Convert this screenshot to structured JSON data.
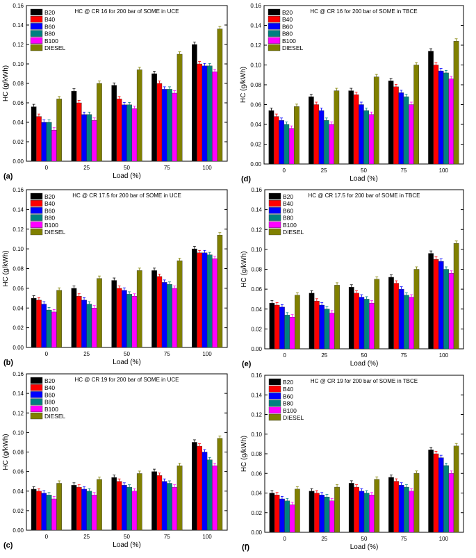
{
  "colors": {
    "B20": "#000000",
    "B40": "#ff0000",
    "B60": "#0000ff",
    "B80": "#008080",
    "B100": "#ff00ff",
    "DIESEL": "#808000"
  },
  "chart_data": [
    {
      "type": "bar",
      "panel_label": "(a)",
      "title": "HC @ CR 16 for 200 bar of SOME in UCE",
      "xlabel": "Load (%)",
      "ylabel": "HC (g/kWh)",
      "categories": [
        "0",
        "25",
        "50",
        "75",
        "100"
      ],
      "ylim": [
        0,
        0.16
      ],
      "yticks": [
        "0.00",
        "0.02",
        "0.04",
        "0.06",
        "0.08",
        "0.10",
        "0.12",
        "0.14",
        "0.16"
      ],
      "series": [
        {
          "name": "B20",
          "values": [
            0.056,
            0.072,
            0.078,
            0.09,
            0.12
          ]
        },
        {
          "name": "B40",
          "values": [
            0.046,
            0.06,
            0.064,
            0.08,
            0.1
          ]
        },
        {
          "name": "B60",
          "values": [
            0.04,
            0.048,
            0.058,
            0.074,
            0.098
          ]
        },
        {
          "name": "B80",
          "values": [
            0.04,
            0.048,
            0.058,
            0.074,
            0.098
          ]
        },
        {
          "name": "B100",
          "values": [
            0.032,
            0.042,
            0.054,
            0.07,
            0.092
          ]
        },
        {
          "name": "DIESEL",
          "values": [
            0.064,
            0.08,
            0.094,
            0.11,
            0.136
          ]
        }
      ]
    },
    {
      "type": "bar",
      "panel_label": "(d)",
      "title": "HC @ CR 16 for 200 bar of SOME in TBCE",
      "xlabel": "Load (%)",
      "ylabel": "HC (g/kWh)",
      "categories": [
        "0",
        "25",
        "50",
        "75",
        "100"
      ],
      "ylim": [
        0,
        0.16
      ],
      "yticks": [
        "0.00",
        "0.02",
        "0.04",
        "0.06",
        "0.08",
        "0.10",
        "0.12",
        "0.14",
        "0.16"
      ],
      "series": [
        {
          "name": "B20",
          "values": [
            0.054,
            0.068,
            0.074,
            0.084,
            0.114
          ]
        },
        {
          "name": "B40",
          "values": [
            0.048,
            0.06,
            0.07,
            0.078,
            0.1
          ]
        },
        {
          "name": "B60",
          "values": [
            0.044,
            0.054,
            0.06,
            0.072,
            0.094
          ]
        },
        {
          "name": "B80",
          "values": [
            0.04,
            0.044,
            0.054,
            0.068,
            0.092
          ]
        },
        {
          "name": "B100",
          "values": [
            0.036,
            0.04,
            0.05,
            0.06,
            0.086
          ]
        },
        {
          "name": "DIESEL",
          "values": [
            0.058,
            0.074,
            0.088,
            0.1,
            0.124
          ]
        }
      ]
    },
    {
      "type": "bar",
      "panel_label": "(b)",
      "title": "HC @ CR 17.5 for 200 bar of SOME in UCE",
      "xlabel": "Load (%)",
      "ylabel": "HC (g/kWh)",
      "categories": [
        "0",
        "25",
        "50",
        "75",
        "100"
      ],
      "ylim": [
        0,
        0.16
      ],
      "yticks": [
        "0.00",
        "0.02",
        "0.04",
        "0.06",
        "0.08",
        "0.10",
        "0.12",
        "0.14",
        "0.16"
      ],
      "series": [
        {
          "name": "B20",
          "values": [
            0.05,
            0.06,
            0.068,
            0.078,
            0.1
          ]
        },
        {
          "name": "B40",
          "values": [
            0.048,
            0.052,
            0.06,
            0.072,
            0.096
          ]
        },
        {
          "name": "B60",
          "values": [
            0.044,
            0.048,
            0.058,
            0.066,
            0.096
          ]
        },
        {
          "name": "B80",
          "values": [
            0.038,
            0.044,
            0.054,
            0.064,
            0.094
          ]
        },
        {
          "name": "B100",
          "values": [
            0.036,
            0.04,
            0.052,
            0.06,
            0.09
          ]
        },
        {
          "name": "DIESEL",
          "values": [
            0.058,
            0.07,
            0.078,
            0.088,
            0.114
          ]
        }
      ]
    },
    {
      "type": "bar",
      "panel_label": "(e)",
      "title": "HC @ CR 17.5 for 200 bar of SOME in TBCE",
      "xlabel": "Load (%)",
      "ylabel": "HC (g/kWh)",
      "categories": [
        "0",
        "25",
        "50",
        "75",
        "100"
      ],
      "ylim": [
        0,
        0.16
      ],
      "yticks": [
        "0.00",
        "0.02",
        "0.04",
        "0.06",
        "0.08",
        "0.10",
        "0.12",
        "0.14",
        "0.16"
      ],
      "series": [
        {
          "name": "B20",
          "values": [
            0.046,
            0.056,
            0.062,
            0.072,
            0.096
          ]
        },
        {
          "name": "B40",
          "values": [
            0.044,
            0.048,
            0.056,
            0.066,
            0.09
          ]
        },
        {
          "name": "B60",
          "values": [
            0.042,
            0.044,
            0.052,
            0.06,
            0.088
          ]
        },
        {
          "name": "B80",
          "values": [
            0.034,
            0.04,
            0.05,
            0.054,
            0.08
          ]
        },
        {
          "name": "B100",
          "values": [
            0.032,
            0.036,
            0.046,
            0.052,
            0.076
          ]
        },
        {
          "name": "DIESEL",
          "values": [
            0.054,
            0.064,
            0.07,
            0.08,
            0.106
          ]
        }
      ]
    },
    {
      "type": "bar",
      "panel_label": "(c)",
      "title": "HC @ CR 19 for 200 bar of SOME in UCE",
      "xlabel": "Load (%)",
      "ylabel": "HC (g/kWh)",
      "categories": [
        "0",
        "25",
        "50",
        "75",
        "100"
      ],
      "ylim": [
        0,
        0.16
      ],
      "yticks": [
        "0.00",
        "0.02",
        "0.04",
        "0.06",
        "0.08",
        "0.10",
        "0.12",
        "0.14",
        "0.16"
      ],
      "series": [
        {
          "name": "B20",
          "values": [
            0.042,
            0.046,
            0.054,
            0.06,
            0.09
          ]
        },
        {
          "name": "B40",
          "values": [
            0.04,
            0.044,
            0.05,
            0.056,
            0.086
          ]
        },
        {
          "name": "B60",
          "values": [
            0.038,
            0.042,
            0.046,
            0.05,
            0.08
          ]
        },
        {
          "name": "B80",
          "values": [
            0.036,
            0.04,
            0.044,
            0.048,
            0.072
          ]
        },
        {
          "name": "B100",
          "values": [
            0.032,
            0.036,
            0.04,
            0.044,
            0.066
          ]
        },
        {
          "name": "DIESEL",
          "values": [
            0.048,
            0.052,
            0.058,
            0.066,
            0.094
          ]
        }
      ]
    },
    {
      "type": "bar",
      "panel_label": "(f)",
      "title": "HC @ CR 19 for 200 bar of SOME in TBCE",
      "xlabel": "Load (%)",
      "ylabel": "HC (g/kWh)",
      "categories": [
        "0",
        "25",
        "50",
        "75",
        "100"
      ],
      "ylim": [
        0,
        0.16
      ],
      "yticks": [
        "0.00",
        "0.02",
        "0.04",
        "0.06",
        "0.08",
        "0.10",
        "0.12",
        "0.14",
        "0.16"
      ],
      "series": [
        {
          "name": "B20",
          "values": [
            0.04,
            0.042,
            0.05,
            0.056,
            0.084
          ]
        },
        {
          "name": "B40",
          "values": [
            0.038,
            0.04,
            0.046,
            0.052,
            0.08
          ]
        },
        {
          "name": "B60",
          "values": [
            0.034,
            0.038,
            0.042,
            0.048,
            0.076
          ]
        },
        {
          "name": "B80",
          "values": [
            0.032,
            0.036,
            0.04,
            0.046,
            0.068
          ]
        },
        {
          "name": "B100",
          "values": [
            0.028,
            0.032,
            0.038,
            0.042,
            0.06
          ]
        },
        {
          "name": "DIESEL",
          "values": [
            0.044,
            0.046,
            0.054,
            0.06,
            0.088
          ]
        }
      ]
    }
  ]
}
